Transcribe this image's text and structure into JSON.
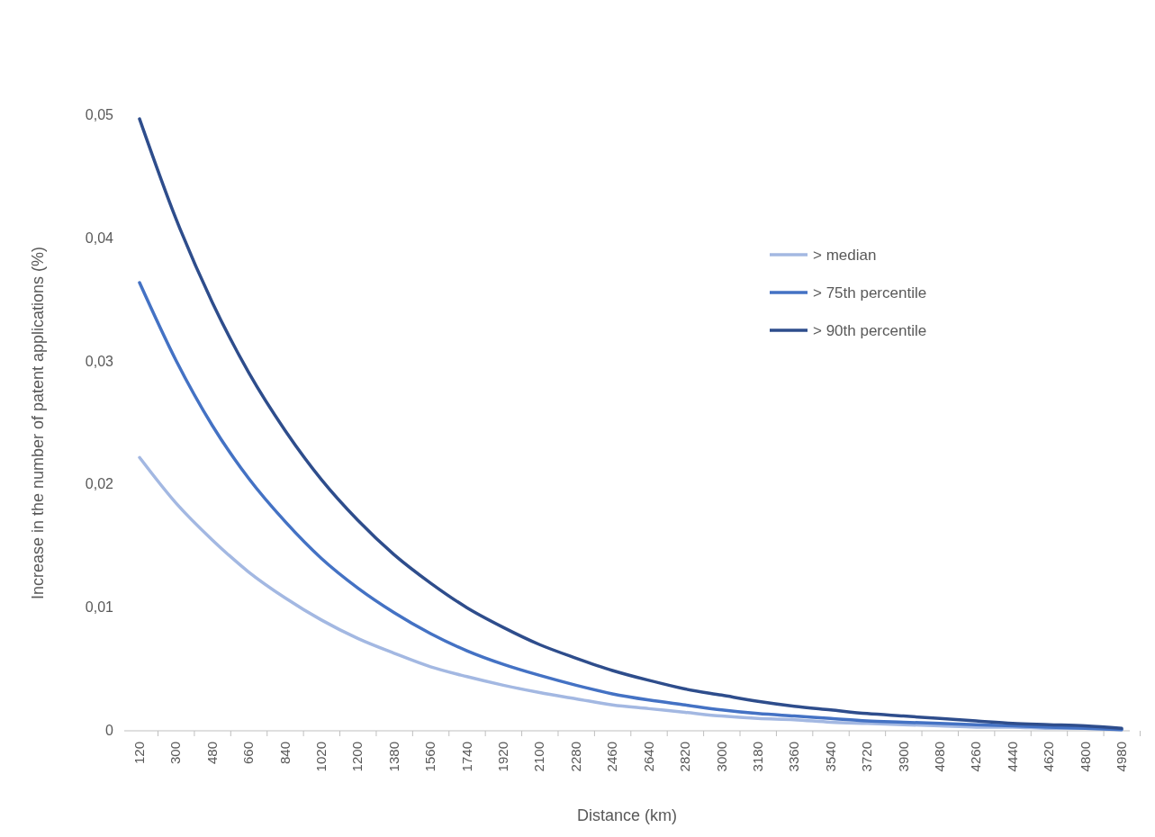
{
  "chart_data": {
    "type": "line",
    "xlabel": "Distance (km)",
    "ylabel": "Increase in the number of patent applications (%)",
    "categories": [
      "120",
      "300",
      "480",
      "660",
      "840",
      "1020",
      "1200",
      "1380",
      "1560",
      "1740",
      "1920",
      "2100",
      "2280",
      "2460",
      "2640",
      "2820",
      "3000",
      "3180",
      "3360",
      "3540",
      "3720",
      "3900",
      "4080",
      "4260",
      "4440",
      "4620",
      "4800",
      "4980"
    ],
    "series": [
      {
        "name": "> median",
        "color": "#a3b8e2",
        "values": [
          0.0222,
          0.0185,
          0.0155,
          0.0129,
          0.0108,
          0.009,
          0.0075,
          0.0063,
          0.0052,
          0.0044,
          0.0037,
          0.0031,
          0.0026,
          0.0021,
          0.0018,
          0.0015,
          0.0012,
          0.001,
          0.0009,
          0.0007,
          0.0006,
          0.0005,
          0.0004,
          0.0003,
          0.0003,
          0.0002,
          0.0002,
          0.0001
        ]
      },
      {
        "name": "> 75th percentile",
        "color": "#4472c4",
        "values": [
          0.0364,
          0.0301,
          0.0248,
          0.0205,
          0.017,
          0.014,
          0.0116,
          0.0096,
          0.0079,
          0.0065,
          0.0054,
          0.0045,
          0.0037,
          0.003,
          0.0025,
          0.0021,
          0.0017,
          0.0014,
          0.0012,
          0.001,
          0.0008,
          0.0007,
          0.0006,
          0.0005,
          0.0004,
          0.0003,
          0.0002,
          0.0001
        ]
      },
      {
        "name": "> 90th percentile",
        "color": "#2e4d8c",
        "values": [
          0.0497,
          0.0416,
          0.0348,
          0.0291,
          0.0244,
          0.0204,
          0.0171,
          0.0143,
          0.012,
          0.01,
          0.0084,
          0.007,
          0.0059,
          0.0049,
          0.0041,
          0.0034,
          0.0029,
          0.0024,
          0.002,
          0.0017,
          0.0014,
          0.0012,
          0.001,
          0.0008,
          0.0006,
          0.0005,
          0.0004,
          0.0002
        ]
      }
    ],
    "ylim": [
      0,
      0.05
    ],
    "yticks": [
      0,
      {
        "value": 0.01,
        "label": "0,01"
      },
      {
        "value": 0.02,
        "label": "0,02"
      },
      {
        "value": 0.03,
        "label": "0,03"
      },
      {
        "value": 0.04,
        "label": "0,04"
      },
      {
        "value": 0.05,
        "label": "0,05"
      }
    ],
    "grid": false,
    "legend": "right",
    "marker": "none",
    "line_style": "solid"
  }
}
